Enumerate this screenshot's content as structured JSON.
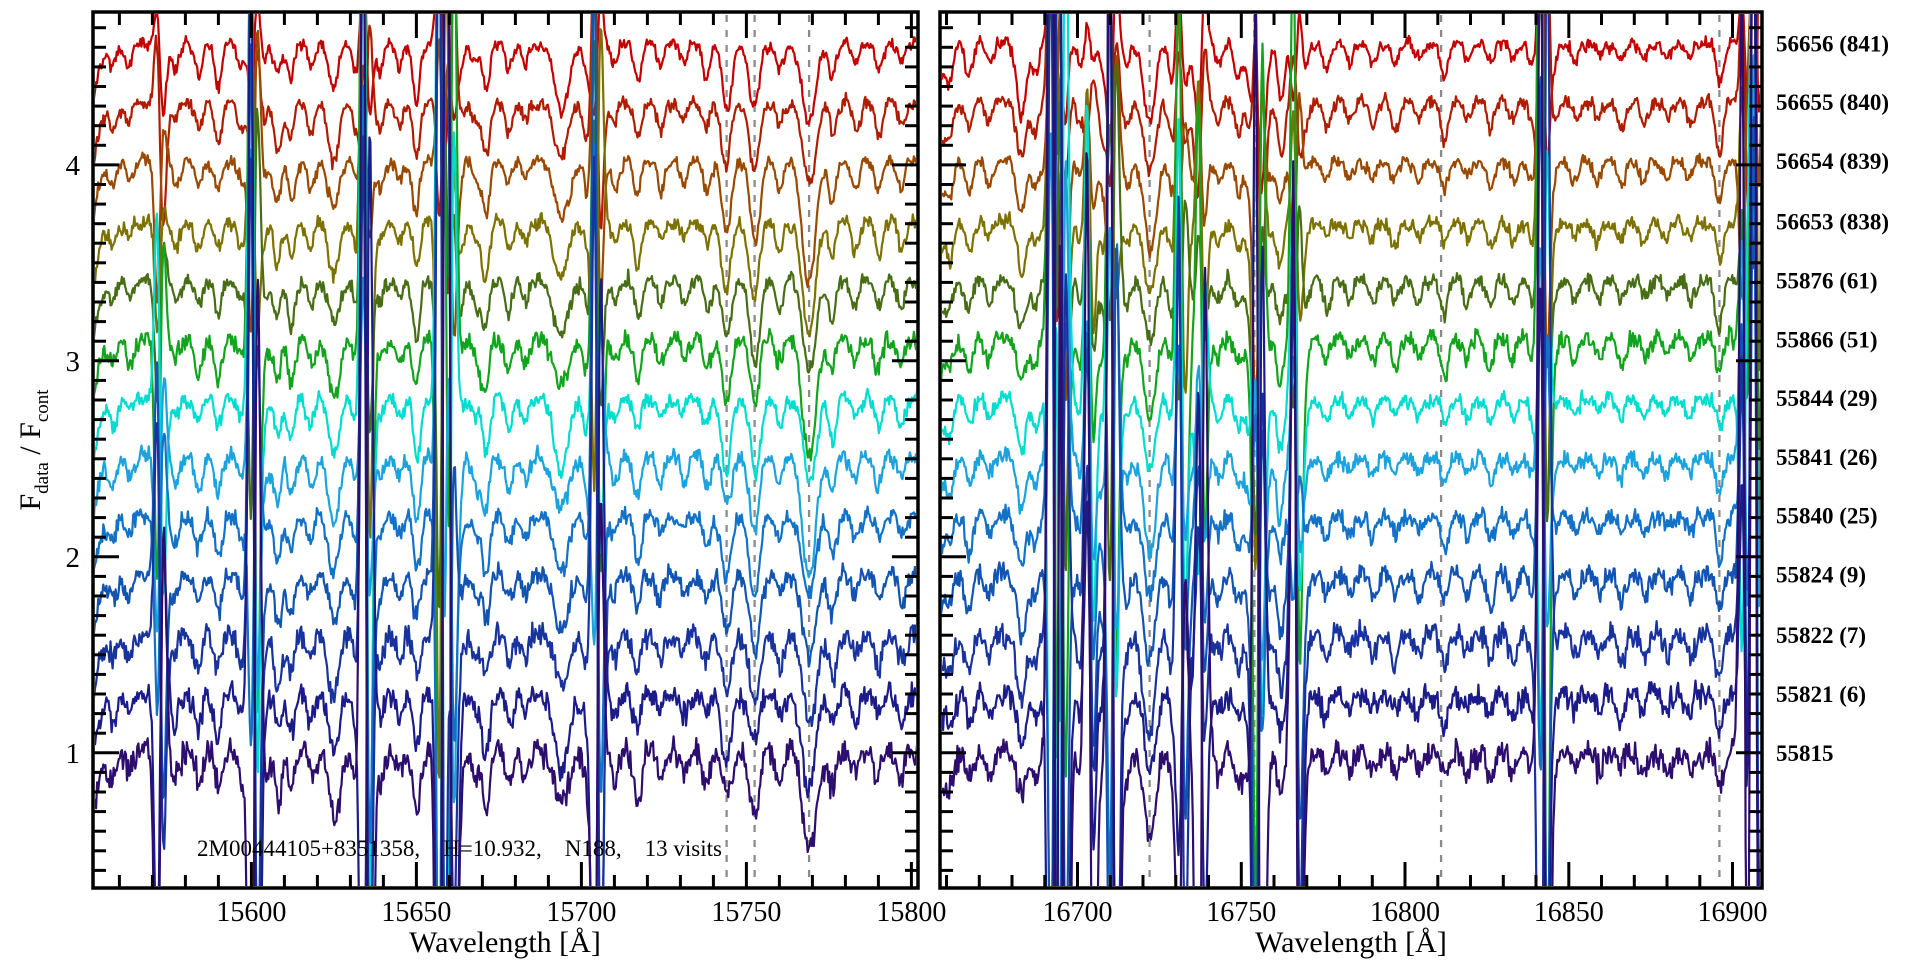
{
  "chart_data": {
    "type": "line",
    "title": "",
    "annotation": "2M00444105+8351358,    H=10.932,    N188,    13 visits",
    "star_id": "2M00444105+8351358",
    "h_mag": "10.932",
    "cluster": "N188",
    "n_visits": "13 visits",
    "xlabel": "Wavelength [Å]",
    "ylabel": "F_data / F_cont",
    "ylabel_parts": [
      "F",
      "data",
      " / F",
      "cont"
    ],
    "ylim": [
      0.31,
      4.78
    ],
    "yticks": [
      1,
      2,
      3,
      4
    ],
    "y_minor_step": 0.1,
    "grid": false,
    "legend_position": "right",
    "panels": [
      {
        "xlim": [
          15552,
          15802
        ],
        "xticks": [
          15600,
          15650,
          15700,
          15750,
          15800
        ],
        "x_minor_step": 10,
        "dashed_lines": [
          15744,
          15752.5,
          15769
        ],
        "absorption_lines": [
          [
            15558,
            0.12
          ],
          [
            15563,
            0.1
          ],
          [
            15573,
            0.26
          ],
          [
            15577,
            0.12
          ],
          [
            15584,
            0.15
          ],
          [
            15590,
            0.18
          ],
          [
            15597,
            0.12
          ],
          [
            15604,
            0.1
          ],
          [
            15608,
            0.22
          ],
          [
            15612,
            0.2
          ],
          [
            15618,
            0.12
          ],
          [
            15625,
            0.28,
            1.6
          ],
          [
            15632,
            0.15
          ],
          [
            15639,
            0.12
          ],
          [
            15645,
            0.1
          ],
          [
            15650,
            0.26
          ],
          [
            15662,
            0.24,
            1.4
          ],
          [
            15668,
            0.12
          ],
          [
            15671,
            0.25
          ],
          [
            15678,
            0.14
          ],
          [
            15683,
            0.1
          ],
          [
            15694,
            0.3,
            2.2
          ],
          [
            15702,
            0.18
          ],
          [
            15710,
            0.12
          ],
          [
            15717,
            0.2
          ],
          [
            15724,
            0.12
          ],
          [
            15731,
            0.1
          ],
          [
            15738,
            0.14
          ],
          [
            15744,
            0.3,
            1.4
          ],
          [
            15752.5,
            0.34,
            1.5
          ],
          [
            15760,
            0.15
          ],
          [
            15769,
            0.5,
            2.0
          ],
          [
            15776,
            0.18
          ],
          [
            15783,
            0.12
          ],
          [
            15790,
            0.14
          ],
          [
            15797,
            0.12
          ]
        ],
        "sky_residual_lines": [
          [
            15571.5,
            0.9
          ],
          [
            15600,
            1.4
          ],
          [
            15634,
            1.9
          ],
          [
            15657,
            2.6
          ],
          [
            15659.5,
            1.8
          ],
          [
            15704,
            1.5
          ]
        ]
      },
      {
        "xlim": [
          16658,
          16909
        ],
        "xticks": [
          16700,
          16750,
          16800,
          16850,
          16900
        ],
        "x_minor_step": 10,
        "dashed_lines": [
          16722,
          16754,
          16811,
          16896
        ],
        "absorption_lines": [
          [
            16661,
            0.12
          ],
          [
            16667,
            0.15
          ],
          [
            16673,
            0.1
          ],
          [
            16683,
            0.3,
            1.4
          ],
          [
            16687,
            0.12
          ],
          [
            16694,
            0.14
          ],
          [
            16701,
            0.12
          ],
          [
            16708,
            0.16
          ],
          [
            16715,
            0.12
          ],
          [
            16722,
            0.4,
            1.8
          ],
          [
            16729,
            0.16
          ],
          [
            16736,
            0.14
          ],
          [
            16743,
            0.1
          ],
          [
            16749,
            0.14
          ],
          [
            16755,
            0.5,
            2.0
          ],
          [
            16762,
            0.26
          ],
          [
            16769,
            0.16
          ],
          [
            16776,
            0.12
          ],
          [
            16783,
            0.1
          ],
          [
            16790,
            0.1
          ],
          [
            16797,
            0.12
          ],
          [
            16804,
            0.1
          ],
          [
            16812,
            0.16
          ],
          [
            16819,
            0.1
          ],
          [
            16826,
            0.12
          ],
          [
            16833,
            0.1
          ],
          [
            16839,
            0.12
          ],
          [
            16845,
            0.12
          ],
          [
            16852,
            0.1
          ],
          [
            16859,
            0.09
          ],
          [
            16866,
            0.12
          ],
          [
            16873,
            0.1
          ],
          [
            16880,
            0.09
          ],
          [
            16887,
            0.1
          ],
          [
            16896,
            0.2
          ],
          [
            16903,
            0.12
          ]
        ],
        "sky_residual_lines": [
          [
            16692,
            3.0
          ],
          [
            16694.5,
            2.2
          ],
          [
            16703,
            0.8
          ],
          [
            16710,
            1.5
          ],
          [
            16731,
            0.9
          ],
          [
            16737,
            0.8
          ],
          [
            16754.5,
            1.1
          ],
          [
            16766,
            0.9
          ],
          [
            16841.5,
            2.0
          ],
          [
            16903,
            1.1
          ],
          [
            16906.5,
            2.4
          ],
          [
            16909,
            1.7
          ]
        ]
      }
    ],
    "visits": [
      {
        "label": "56656 (841)",
        "mjd": "56656",
        "visit": "841",
        "color": "#c40000",
        "offset": 4.62,
        "noise": 0.02,
        "sky": 0.3,
        "seed": 101
      },
      {
        "label": "56655 (840)",
        "mjd": "56655",
        "visit": "840",
        "color": "#b01c00",
        "offset": 4.32,
        "noise": 0.022,
        "sky": 0.5,
        "seed": 102
      },
      {
        "label": "56654 (839)",
        "mjd": "56654",
        "visit": "839",
        "color": "#9a4a00",
        "offset": 4.02,
        "noise": 0.022,
        "sky": 0.6,
        "seed": 103
      },
      {
        "label": "56653 (838)",
        "mjd": "56653",
        "visit": "838",
        "color": "#7d7200",
        "offset": 3.71,
        "noise": 0.024,
        "sky": 0.95,
        "seed": 104
      },
      {
        "label": "55876 (61)",
        "mjd": "55876",
        "visit": "61",
        "color": "#476e15",
        "offset": 3.41,
        "noise": 0.025,
        "sky": 0.75,
        "seed": 105
      },
      {
        "label": "55866 (51)",
        "mjd": "55866",
        "visit": "51",
        "color": "#12a41c",
        "offset": 3.11,
        "noise": 0.03,
        "sky": 1.7,
        "seed": 106
      },
      {
        "label": "55844 (29)",
        "mjd": "55844",
        "visit": "29",
        "color": "#00ddd0",
        "offset": 2.81,
        "noise": 0.026,
        "sky": 1.35,
        "seed": 107
      },
      {
        "label": "55841 (26)",
        "mjd": "55841",
        "visit": "26",
        "color": "#1ba3dd",
        "offset": 2.51,
        "noise": 0.028,
        "sky": 0.9,
        "seed": 108
      },
      {
        "label": "55840 (25)",
        "mjd": "55840",
        "visit": "25",
        "color": "#1272c8",
        "offset": 2.21,
        "noise": 0.03,
        "sky": 1.15,
        "seed": 109
      },
      {
        "label": "55824 (9)",
        "mjd": "55824",
        "visit": "9",
        "color": "#1254b2",
        "offset": 1.91,
        "noise": 0.034,
        "sky": 1.55,
        "seed": 110
      },
      {
        "label": "55822 (7)",
        "mjd": "55822",
        "visit": "7",
        "color": "#19339e",
        "offset": 1.6,
        "noise": 0.038,
        "sky": 1.95,
        "seed": 111
      },
      {
        "label": "55821 (6)",
        "mjd": "55821",
        "visit": "6",
        "color": "#1b1b8a",
        "offset": 1.3,
        "noise": 0.041,
        "sky": 2.35,
        "seed": 112
      },
      {
        "label": "55815",
        "mjd": "55815",
        "visit": "",
        "color": "#2d0e6e",
        "offset": 1.0,
        "noise": 0.045,
        "sky": 2.9,
        "seed": 113
      }
    ]
  }
}
